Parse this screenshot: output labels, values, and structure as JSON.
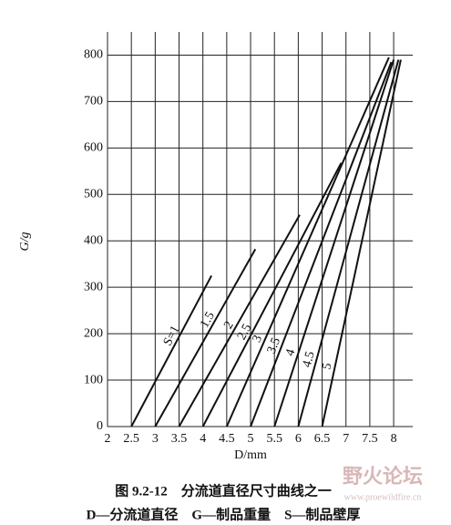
{
  "chart_data": {
    "type": "line",
    "xlabel": "D/mm",
    "ylabel": "G/g",
    "caption": "图 9.2-12　分流道直径尺寸曲线之一",
    "legend_note": "D—分流道直径　G—制品重量　S—制品壁厚",
    "watermark": "野火论坛",
    "watermark_url": "www.proewildfire.cn",
    "xlim": [
      2,
      8.4
    ],
    "ylim": [
      0,
      850
    ],
    "xticks": [
      2,
      2.5,
      3,
      3.5,
      4,
      4.5,
      5,
      5.5,
      6,
      6.5,
      7,
      7.5,
      8
    ],
    "yticks": [
      0,
      100,
      200,
      300,
      400,
      500,
      600,
      700,
      800
    ],
    "grid": true,
    "color": "#111111",
    "series": [
      {
        "name": "S=1",
        "x": [
          2.5,
          4.18
        ],
        "values": [
          0,
          325
        ]
      },
      {
        "name": "1.5",
        "x": [
          3,
          5.1
        ],
        "values": [
          0,
          382
        ]
      },
      {
        "name": "2",
        "x": [
          3.5,
          6.03
        ],
        "values": [
          0,
          456
        ]
      },
      {
        "name": "2.5",
        "x": [
          4,
          6.9
        ],
        "values": [
          0,
          568
        ]
      },
      {
        "name": "3",
        "x": [
          4.5,
          7.9
        ],
        "values": [
          0,
          795
        ]
      },
      {
        "name": "3.5",
        "x": [
          5,
          7.95
        ],
        "values": [
          0,
          785
        ]
      },
      {
        "name": "4",
        "x": [
          5.5,
          8
        ],
        "values": [
          0,
          790
        ]
      },
      {
        "name": "4.5",
        "x": [
          6,
          8.1
        ],
        "values": [
          0,
          790
        ]
      },
      {
        "name": "5",
        "x": [
          6.5,
          8.15
        ],
        "values": [
          0,
          790
        ]
      }
    ]
  }
}
